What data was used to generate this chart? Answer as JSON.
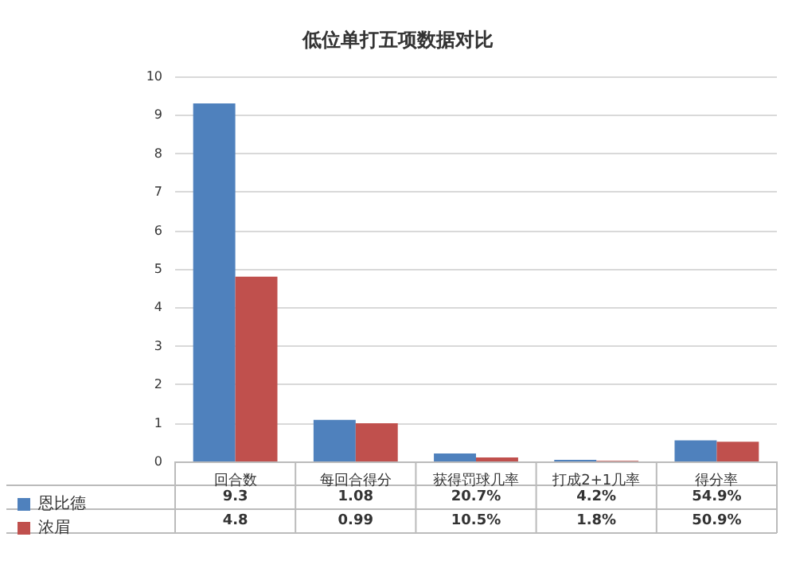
{
  "chart_data": {
    "type": "bar",
    "title": "低位单打五项数据对比",
    "categories": [
      "回合数",
      "每回合得分",
      "获得罚球几率",
      "打成2+1几率",
      "得分率"
    ],
    "series": [
      {
        "name": "恩比德",
        "color": "#4f81bd",
        "values": [
          9.3,
          1.08,
          0.207,
          0.042,
          0.549
        ],
        "value_labels": [
          "9.3",
          "1.08",
          "20.7%",
          "4.2%",
          "54.9%"
        ]
      },
      {
        "name": "浓眉",
        "color": "#c0504d",
        "values": [
          4.8,
          0.99,
          0.105,
          0.018,
          0.509
        ],
        "value_labels": [
          "4.8",
          "0.99",
          "10.5%",
          "1.8%",
          "50.9%"
        ]
      }
    ],
    "ylim": [
      0,
      10
    ],
    "yticks": [
      0,
      1,
      2,
      3,
      4,
      5,
      6,
      7,
      8,
      9,
      10
    ],
    "grid": "y",
    "legend": "bottom left"
  }
}
